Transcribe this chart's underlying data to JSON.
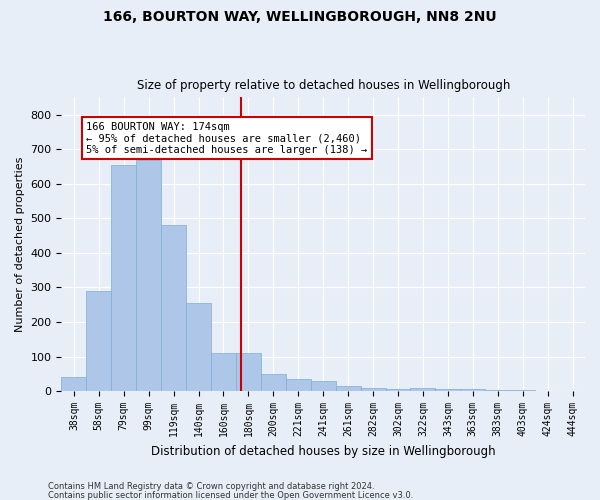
{
  "title1": "166, BOURTON WAY, WELLINGBOROUGH, NN8 2NU",
  "title2": "Size of property relative to detached houses in Wellingborough",
  "xlabel": "Distribution of detached houses by size in Wellingborough",
  "ylabel": "Number of detached properties",
  "bar_labels": [
    "38sqm",
    "58sqm",
    "79sqm",
    "99sqm",
    "119sqm",
    "140sqm",
    "160sqm",
    "180sqm",
    "200sqm",
    "221sqm",
    "241sqm",
    "261sqm",
    "282sqm",
    "302sqm",
    "322sqm",
    "343sqm",
    "363sqm",
    "383sqm",
    "403sqm",
    "424sqm",
    "444sqm"
  ],
  "bar_values": [
    40,
    290,
    655,
    670,
    480,
    255,
    110,
    110,
    50,
    35,
    30,
    15,
    8,
    5,
    8,
    5,
    5,
    3,
    3,
    2,
    2
  ],
  "bar_color": "#aec6e8",
  "bar_edge_color": "#7aafd4",
  "vline_color": "#cc0000",
  "annotation_text": "166 BOURTON WAY: 174sqm\n← 95% of detached houses are smaller (2,460)\n5% of semi-detached houses are larger (138) →",
  "annotation_box_color": "#ffffff",
  "annotation_box_edge": "#cc0000",
  "ylim": [
    0,
    850
  ],
  "yticks": [
    0,
    100,
    200,
    300,
    400,
    500,
    600,
    700,
    800
  ],
  "background_color": "#e8eef7",
  "plot_bg_color": "#dde6f0",
  "grid_color": "#ffffff",
  "footer1": "Contains HM Land Registry data © Crown copyright and database right 2024.",
  "footer2": "Contains public sector information licensed under the Open Government Licence v3.0."
}
